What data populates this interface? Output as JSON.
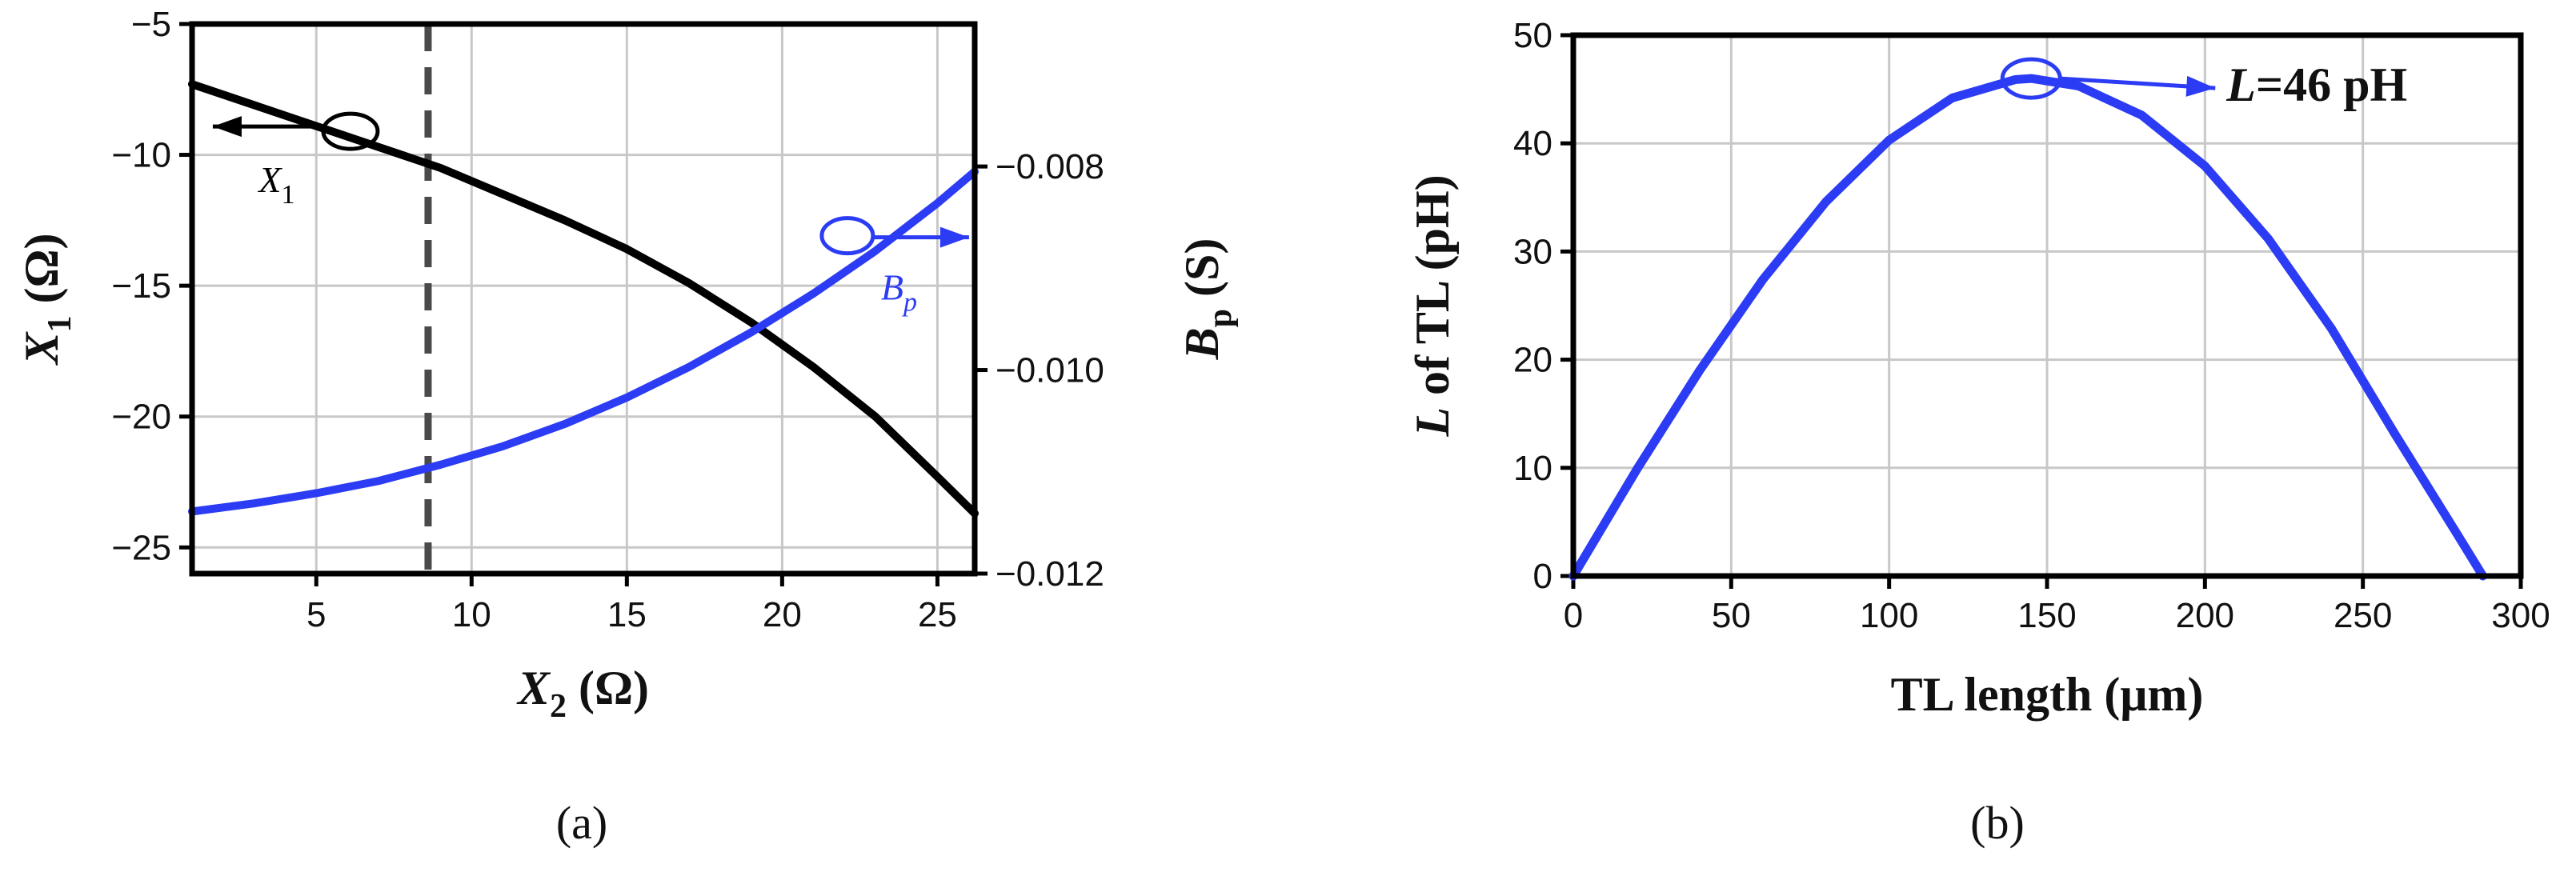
{
  "colors": {
    "black_series": "#000000",
    "blue_series": "#2b3cf4",
    "axis": "#000000",
    "grid": "#c8c8c8",
    "vline": "#4a4a4a"
  },
  "chart_data": [
    {
      "id": "a",
      "type": "line",
      "caption": "(a)",
      "xlabel": "X",
      "xlabel_sub": "2",
      "xlabel_unit": " (Ω)",
      "ylabel": "X",
      "ylabel_sub": "1",
      "ylabel_unit": " (Ω)",
      "y2label": "B",
      "y2label_sub": "p",
      "y2label_unit": " (S)",
      "xlim": [
        1,
        26.2
      ],
      "ylim": [
        -26,
        -5
      ],
      "y2lim": [
        -0.012,
        -0.0066
      ],
      "xticks": [
        "5",
        "10",
        "15",
        "20",
        "25"
      ],
      "xtick_values": [
        5,
        10,
        15,
        20,
        25
      ],
      "yticks": [
        "−5",
        "−10",
        "−15",
        "−20",
        "−25"
      ],
      "ytick_values": [
        -5,
        -10,
        -15,
        -20,
        -25
      ],
      "y2ticks": [
        "−0.008",
        "−0.010",
        "−0.012"
      ],
      "y2tick_values": [
        -0.008,
        -0.01,
        -0.012
      ],
      "grid": true,
      "vline_x": 8.6,
      "series": [
        {
          "name": "X1",
          "axis": "left",
          "color": "#000000",
          "x": [
            1,
            3,
            5,
            7,
            9,
            11,
            13,
            15,
            17,
            19,
            21,
            23,
            25,
            26.2
          ],
          "y": [
            -7.3,
            -8.1,
            -8.9,
            -9.7,
            -10.5,
            -11.5,
            -12.5,
            -13.6,
            -14.9,
            -16.4,
            -18.1,
            -20.0,
            -22.3,
            -23.7
          ]
        },
        {
          "name": "Bp",
          "axis": "right",
          "color": "#2b3cf4",
          "x": [
            1,
            3,
            5,
            7,
            9,
            11,
            13,
            15,
            17,
            19,
            21,
            23,
            25,
            26.2
          ],
          "y": [
            -0.01139,
            -0.01131,
            -0.01121,
            -0.01109,
            -0.01093,
            -0.01075,
            -0.01053,
            -0.01027,
            -0.00997,
            -0.00963,
            -0.00925,
            -0.00883,
            -0.00836,
            -0.00805
          ]
        }
      ],
      "annotations": [
        {
          "label": "X",
          "label_sub": "1",
          "target": "left",
          "ellipse_x": 6.1,
          "ellipse_y": -9.1
        },
        {
          "label": "B",
          "label_sub": "p",
          "target": "right",
          "ellipse_x": 22.1,
          "ellipse_y": -0.00868
        }
      ]
    },
    {
      "id": "b",
      "type": "line",
      "caption": "(b)",
      "xlabel": "TL length (μm)",
      "ylabel": "L",
      "ylabel_rest": " of TL (pH)",
      "xlim": [
        0,
        300
      ],
      "ylim": [
        0,
        50
      ],
      "xticks": [
        "0",
        "50",
        "100",
        "150",
        "200",
        "250",
        "300"
      ],
      "xtick_values": [
        0,
        50,
        100,
        150,
        200,
        250,
        300
      ],
      "yticks": [
        "0",
        "10",
        "20",
        "30",
        "40",
        "50"
      ],
      "ytick_values": [
        0,
        10,
        20,
        30,
        40,
        50
      ],
      "grid": true,
      "series": [
        {
          "name": "L",
          "color": "#2b3cf4",
          "x": [
            0,
            20,
            40,
            60,
            80,
            100,
            120,
            140,
            145,
            160,
            180,
            200,
            220,
            240,
            260,
            280,
            288
          ],
          "y": [
            0,
            9.8,
            19.0,
            27.4,
            34.6,
            40.3,
            44.2,
            45.9,
            46.0,
            45.3,
            42.6,
            37.9,
            31.2,
            22.9,
            13.2,
            3.8,
            0
          ]
        }
      ],
      "annotations": [
        {
          "label": "L",
          "label_rest": "=46 pH",
          "ellipse_x": 145,
          "ellipse_y": 46
        }
      ]
    }
  ]
}
